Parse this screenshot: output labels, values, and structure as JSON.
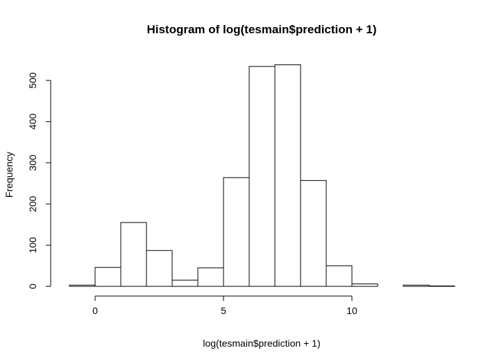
{
  "chart_data": {
    "type": "histogram",
    "title": "Histogram of log(tesmain$prediction + 1)",
    "xlabel": "log(tesmain$prediction + 1)",
    "ylabel": "Frequency",
    "xlim": [
      -1,
      14
    ],
    "ylim": [
      0,
      540
    ],
    "x_ticks": [
      0,
      5,
      10
    ],
    "y_ticks": [
      0,
      100,
      200,
      300,
      400,
      500
    ],
    "grid": false,
    "bins": [
      {
        "start": -1,
        "end": 0,
        "count": 3
      },
      {
        "start": 0,
        "end": 1,
        "count": 46
      },
      {
        "start": 1,
        "end": 2,
        "count": 155
      },
      {
        "start": 2,
        "end": 3,
        "count": 87
      },
      {
        "start": 3,
        "end": 4,
        "count": 15
      },
      {
        "start": 4,
        "end": 5,
        "count": 45
      },
      {
        "start": 5,
        "end": 6,
        "count": 264
      },
      {
        "start": 6,
        "end": 7,
        "count": 534
      },
      {
        "start": 7,
        "end": 8,
        "count": 538
      },
      {
        "start": 8,
        "end": 9,
        "count": 257
      },
      {
        "start": 9,
        "end": 10,
        "count": 50
      },
      {
        "start": 10,
        "end": 11,
        "count": 6
      },
      {
        "start": 11,
        "end": 12,
        "count": 0
      },
      {
        "start": 12,
        "end": 13,
        "count": 3
      },
      {
        "start": 13,
        "end": 14,
        "count": 1
      }
    ]
  }
}
